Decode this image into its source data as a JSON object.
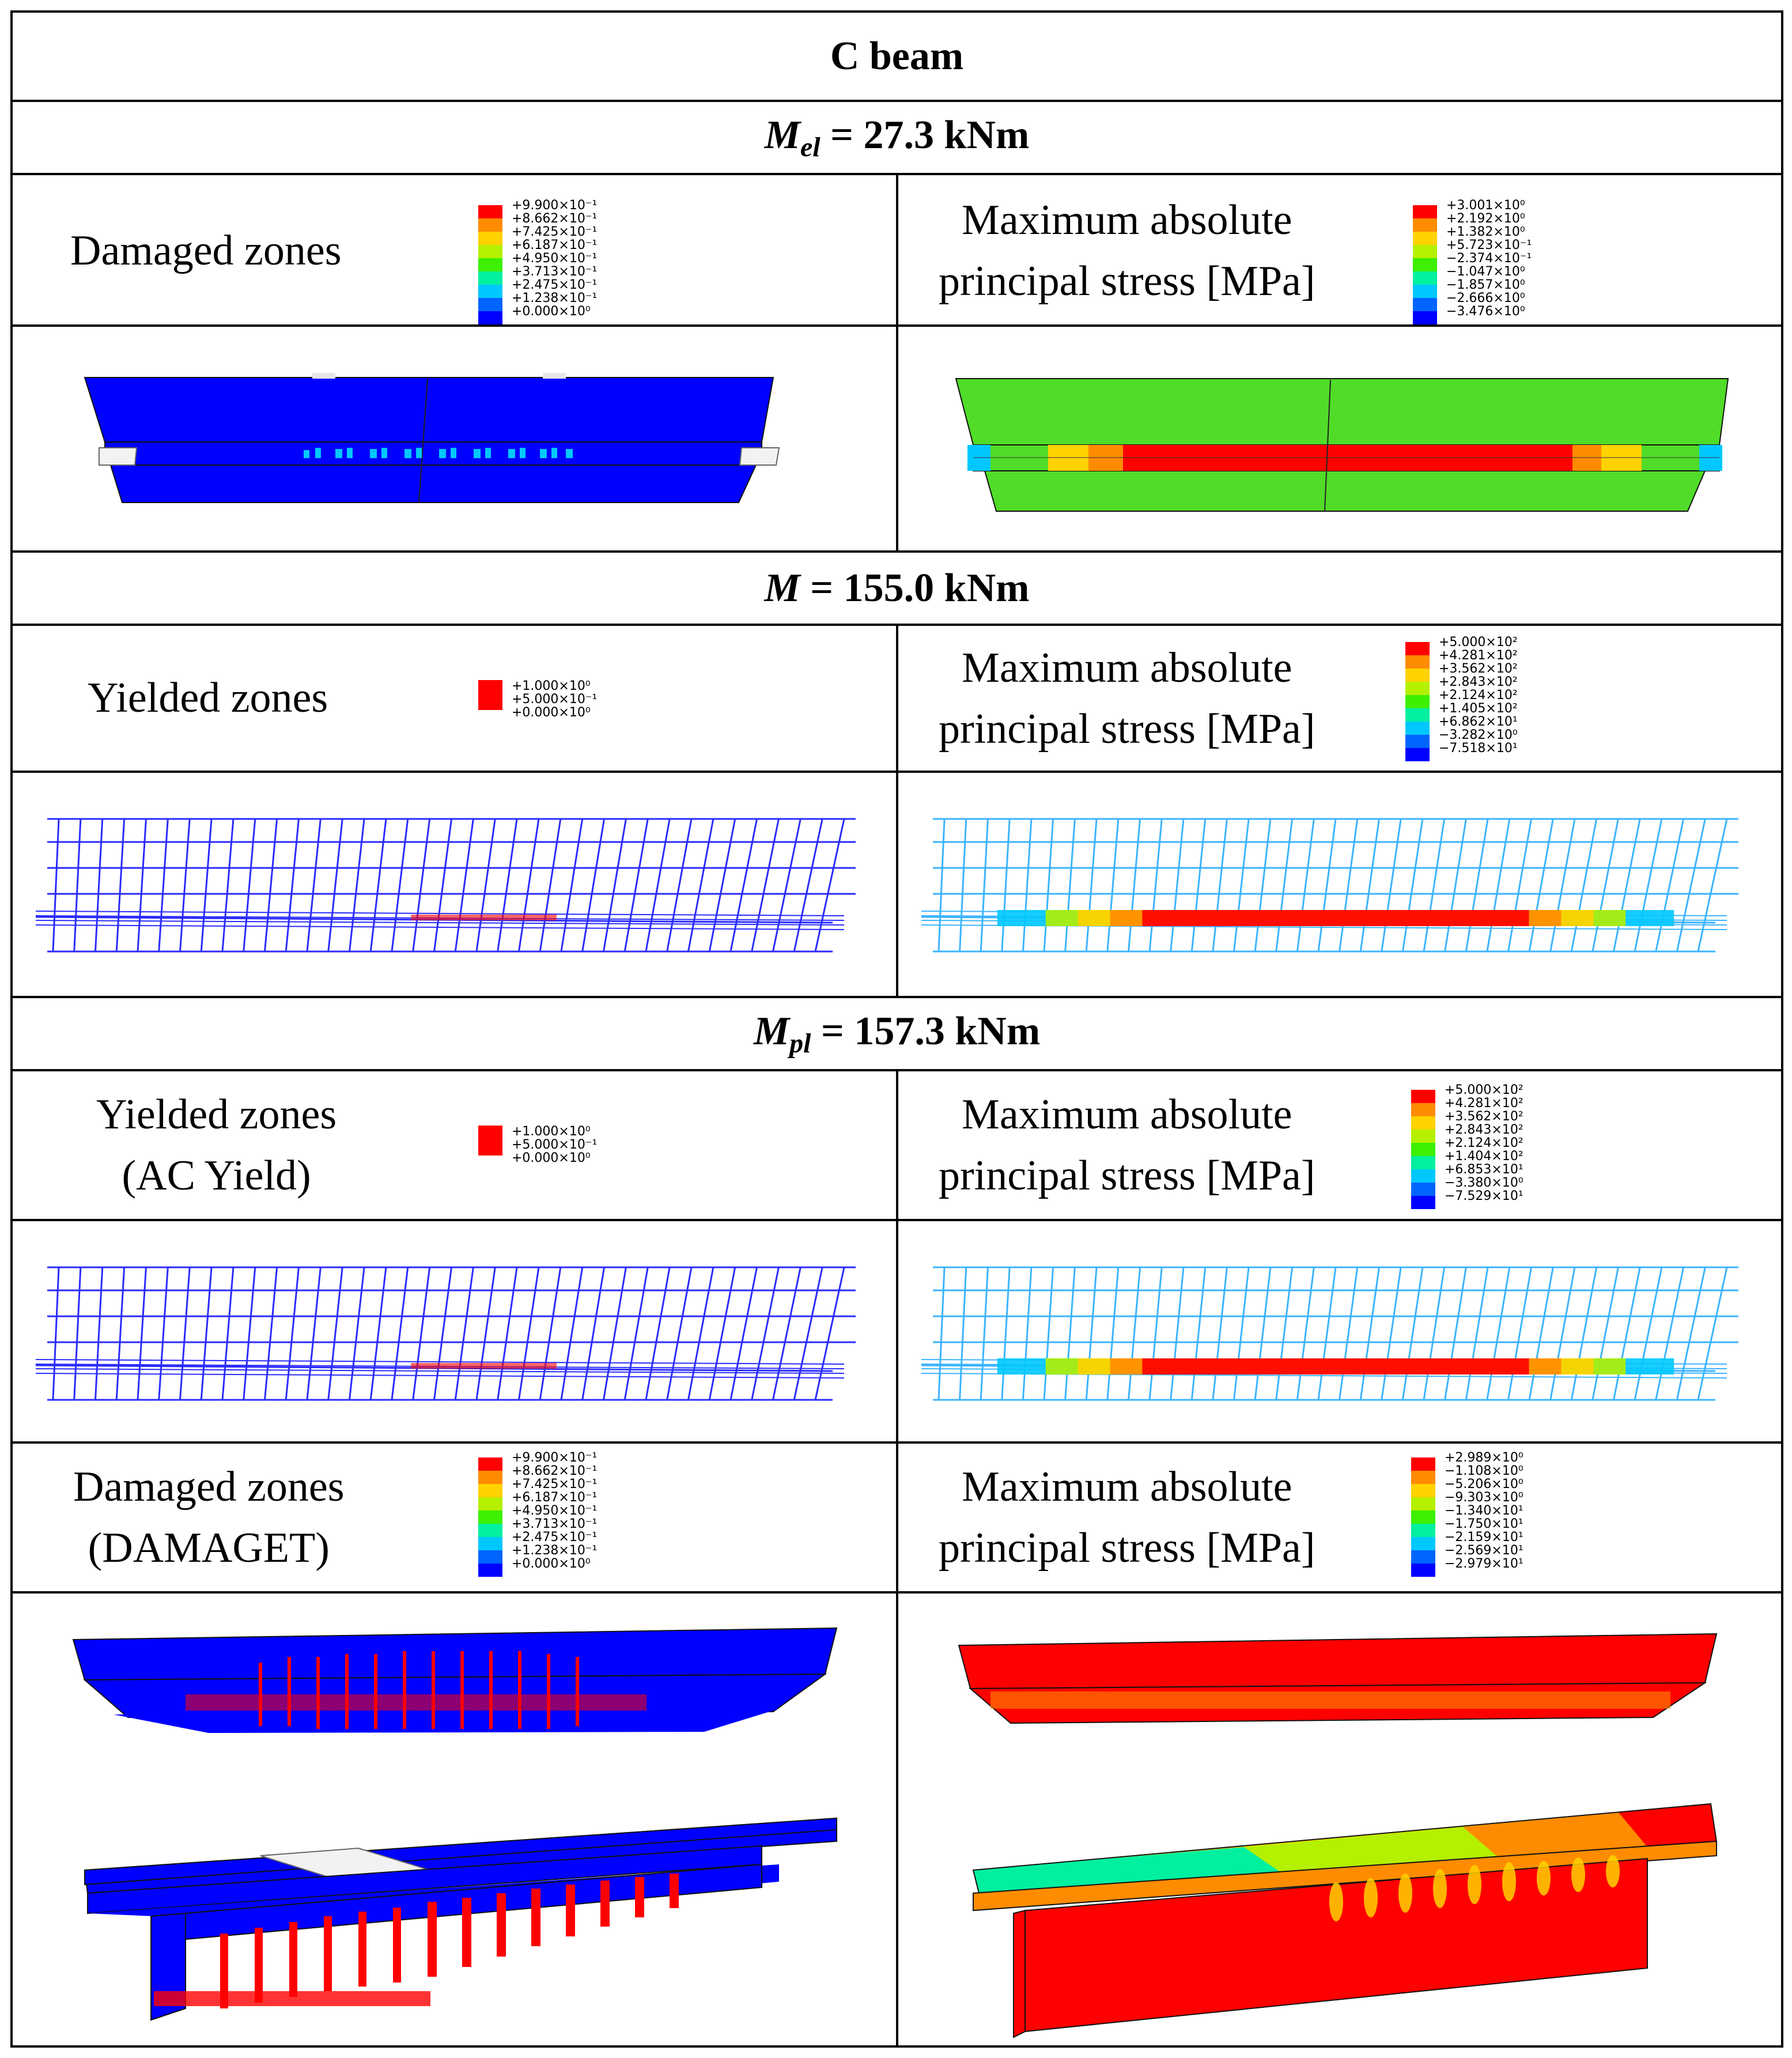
{
  "title": "C beam",
  "sections": [
    {
      "heading": {
        "symbol": "M",
        "sub": "el",
        "value": "= 27.3 kNm"
      },
      "left": {
        "label_lines": [
          "Damaged zones"
        ],
        "legend": [
          "+9.900×10⁻¹",
          "+8.662×10⁻¹",
          "+7.425×10⁻¹",
          "+6.187×10⁻¹",
          "+4.950×10⁻¹",
          "+3.713×10⁻¹",
          "+2.475×10⁻¹",
          "+1.238×10⁻¹",
          "+0.000×10⁰"
        ]
      },
      "right": {
        "label_lines": [
          "Maximum absolute",
          "principal stress [MPa]"
        ],
        "legend": [
          "+3.001×10⁰",
          "+2.192×10⁰",
          "+1.382×10⁰",
          "+5.723×10⁻¹",
          "−2.374×10⁻¹",
          "−1.047×10⁰",
          "−1.857×10⁰",
          "−2.666×10⁰",
          "−3.476×10⁰"
        ]
      }
    },
    {
      "heading": {
        "symbol": "M",
        "sub": "",
        "value": "= 155.0 kNm"
      },
      "left": {
        "label_lines": [
          "Yielded zones"
        ],
        "legend": [
          "+1.000×10⁰",
          "+5.000×10⁻¹",
          "+0.000×10⁰"
        ]
      },
      "right": {
        "label_lines": [
          "Maximum absolute",
          "principal stress [MPa]"
        ],
        "legend": [
          "+5.000×10²",
          "+4.281×10²",
          "+3.562×10²",
          "+2.843×10²",
          "+2.124×10²",
          "+1.405×10²",
          "+6.862×10¹",
          "−3.282×10⁰",
          "−7.518×10¹"
        ]
      }
    },
    {
      "heading": {
        "symbol": "M",
        "sub": "pl",
        "value": "= 157.3 kNm"
      },
      "left": {
        "label_lines": [
          "Yielded zones",
          "(AC Yield)"
        ],
        "legend": [
          "+1.000×10⁰",
          "+5.000×10⁻¹",
          "+0.000×10⁰"
        ]
      },
      "right": {
        "label_lines": [
          "Maximum absolute",
          "principal stress [MPa]"
        ],
        "legend": [
          "+5.000×10²",
          "+4.281×10²",
          "+3.562×10²",
          "+2.843×10²",
          "+2.124×10²",
          "+1.404×10²",
          "+6.853×10¹",
          "−3.380×10⁰",
          "−7.529×10¹"
        ]
      }
    },
    {
      "heading": null,
      "left": {
        "label_lines": [
          "Damaged zones",
          "(DAMAGET)"
        ],
        "legend": [
          "+9.900×10⁻¹",
          "+8.662×10⁻¹",
          "+7.425×10⁻¹",
          "+6.187×10⁻¹",
          "+4.950×10⁻¹",
          "+3.713×10⁻¹",
          "+2.475×10⁻¹",
          "+1.238×10⁻¹",
          "+0.000×10⁰"
        ]
      },
      "right": {
        "label_lines": [
          "Maximum absolute",
          "principal stress [MPa]"
        ],
        "legend": [
          "+2.989×10⁰",
          "−1.108×10⁰",
          "−5.206×10⁰",
          "−9.303×10⁰",
          "−1.340×10¹",
          "−1.750×10¹",
          "−2.159×10¹",
          "−2.569×10¹",
          "−2.979×10¹"
        ]
      }
    }
  ],
  "colors": {
    "contour9": [
      "#ff0000",
      "#ff8c00",
      "#ffd200",
      "#b4f000",
      "#3cf000",
      "#00f0a0",
      "#00c8ff",
      "#0064ff",
      "#0000ff"
    ],
    "contour3": [
      "#ff0000",
      "#ff0000",
      "#0000ff"
    ],
    "concrete_blue": "#0000ff",
    "elastic_green": "#50dc28",
    "rebar_blue": "#2b2bff",
    "rebar_light": "#3cb4ff"
  }
}
